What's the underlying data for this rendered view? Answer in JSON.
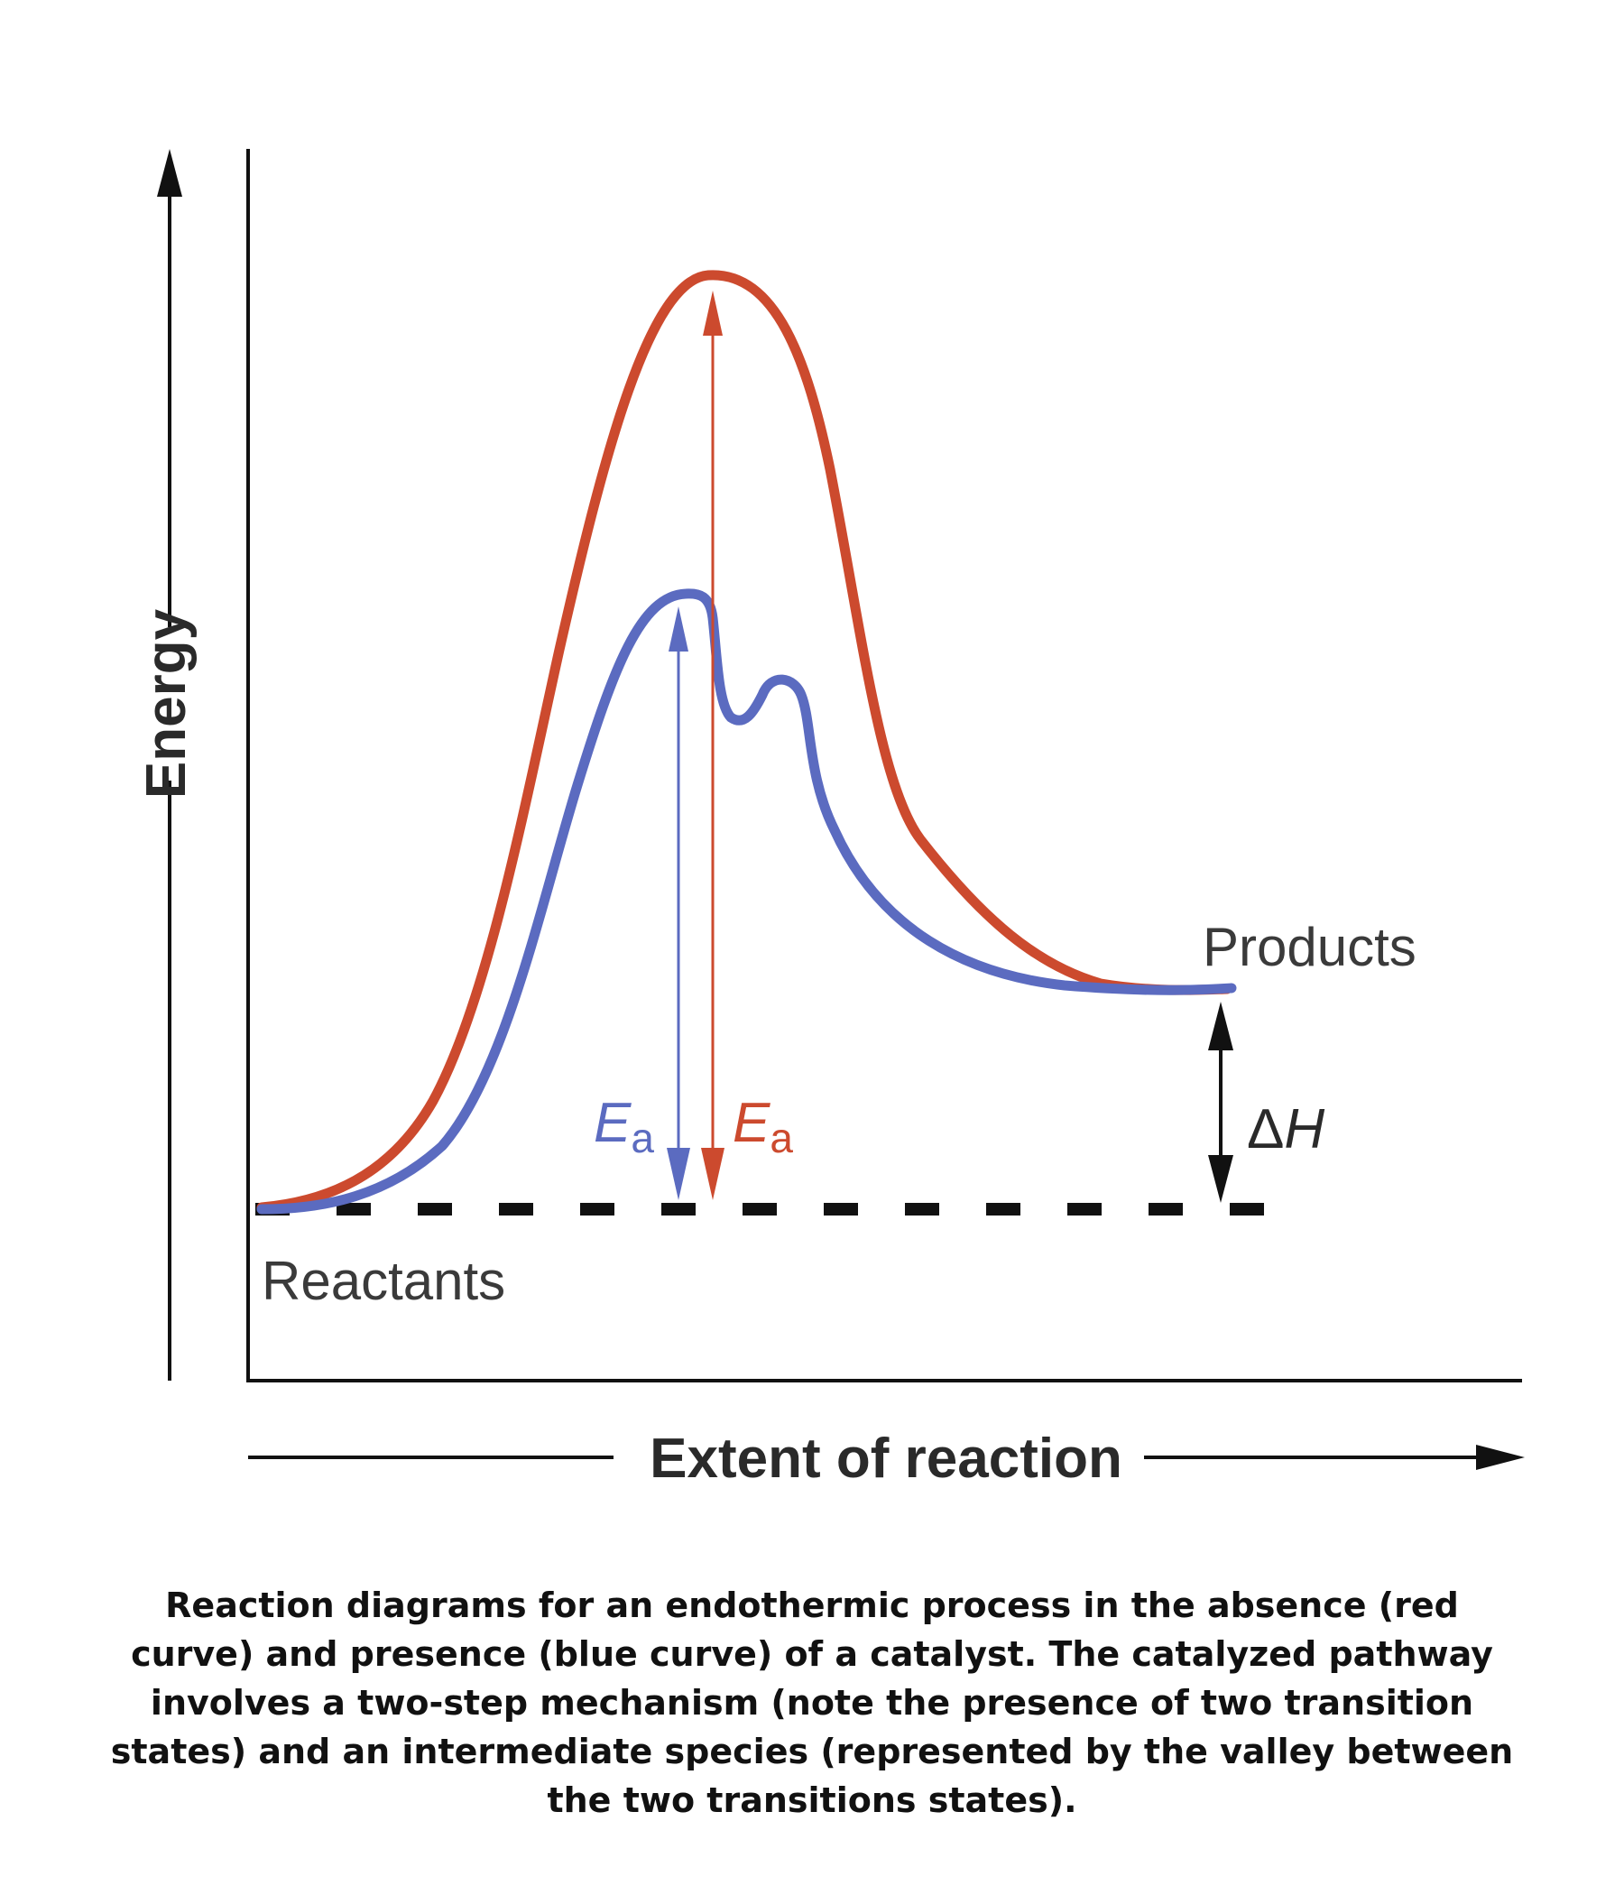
{
  "figure": {
    "y_axis_label": "Energy",
    "x_axis_label": "Extent of reaction",
    "reactants_label": "Reactants",
    "products_label": "Products",
    "uncatalyzed_ea": {
      "symbol": "E",
      "subscript": "a"
    },
    "catalyzed_ea": {
      "symbol": "E",
      "subscript": "a"
    },
    "enthalpy_label": {
      "delta": "Δ",
      "symbol": "H"
    }
  },
  "colors": {
    "uncatalyzed_curve": "#cc4a2e",
    "catalyzed_curve": "#5b6bc0",
    "axes": "#111111",
    "label_text": "#3a3a3a"
  },
  "caption": "Reaction diagrams for an endothermic process in the absence (red curve) and presence (blue curve) of a catalyst. The catalyzed pathway involves a two-step mechanism (note the presence of two transition states) and an intermediate species (represented by the valley between the two transitions states)."
}
